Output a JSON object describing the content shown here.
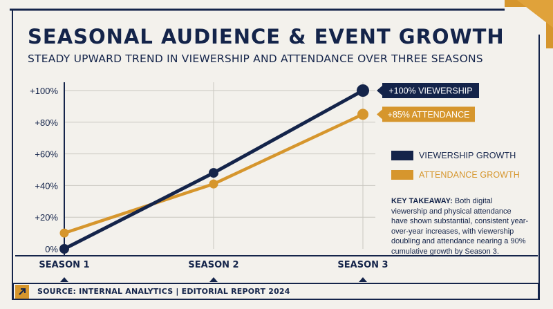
{
  "header": {
    "title": "SEASONAL AUDIENCE & EVENT GROWTH",
    "subtitle": "STEADY UPWARD TREND IN VIEWERSHIP AND ATTENDANCE OVER THREE SEASONS"
  },
  "colors": {
    "navy": "#14244a",
    "gold": "#d6962d",
    "background": "#f3f1ec",
    "grid": "#c9c7c0"
  },
  "chart_data": {
    "type": "line",
    "categories": [
      "SEASON 1",
      "SEASON 2",
      "SEASON 3"
    ],
    "yticks": [
      "0%",
      "+20%",
      "+40%",
      "+60%",
      "+80%",
      "+100%"
    ],
    "ylim": [
      0,
      100
    ],
    "grid": true,
    "legend_position": "right",
    "series": [
      {
        "name": "VIEWERSHIP GROWTH",
        "color": "#14244a",
        "values": [
          0,
          48,
          100
        ]
      },
      {
        "name": "ATTENDANCE GROWTH",
        "color": "#d6962d",
        "values": [
          10,
          41,
          85
        ]
      }
    ],
    "annotations": [
      {
        "text": "+100% VIEWERSHIP",
        "series": 0,
        "point": 2
      },
      {
        "text": "+85% ATTENDANCE",
        "series": 1,
        "point": 2
      }
    ]
  },
  "takeaway": {
    "label": "KEY TAKEAWAY:",
    "text": " Both digital viewership and physical attendance have shown substantial, consistent year-over-year increases, with viewership doubling and attendance nearing a 90% cumulative growth by Season 3."
  },
  "source": {
    "icon": "arrow-up-right-icon",
    "text": "SOURCE: INTERNAL ANALYTICS | EDITORIAL REPORT 2024"
  }
}
